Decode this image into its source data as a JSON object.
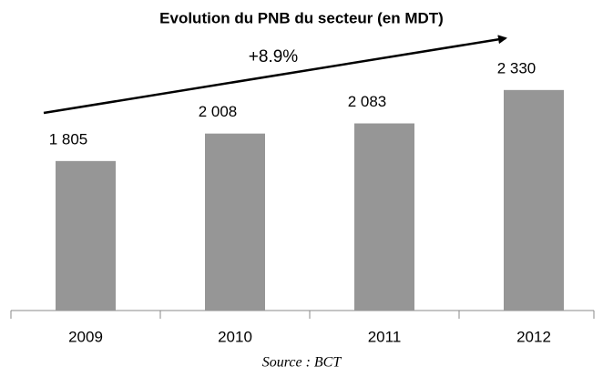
{
  "chart_data": {
    "type": "bar",
    "title": "Evolution  du PNB du secteur (en MDT)",
    "categories": [
      "2009",
      "2010",
      "2011",
      "2012"
    ],
    "values": [
      1805,
      2008,
      2083,
      2330
    ],
    "value_labels": [
      "1 805",
      "2 008",
      "2 083",
      "2 330"
    ],
    "color": "#969696",
    "ylim": [
      700,
      2800
    ],
    "annotation": "+8.9%",
    "source": "Source : BCT"
  }
}
